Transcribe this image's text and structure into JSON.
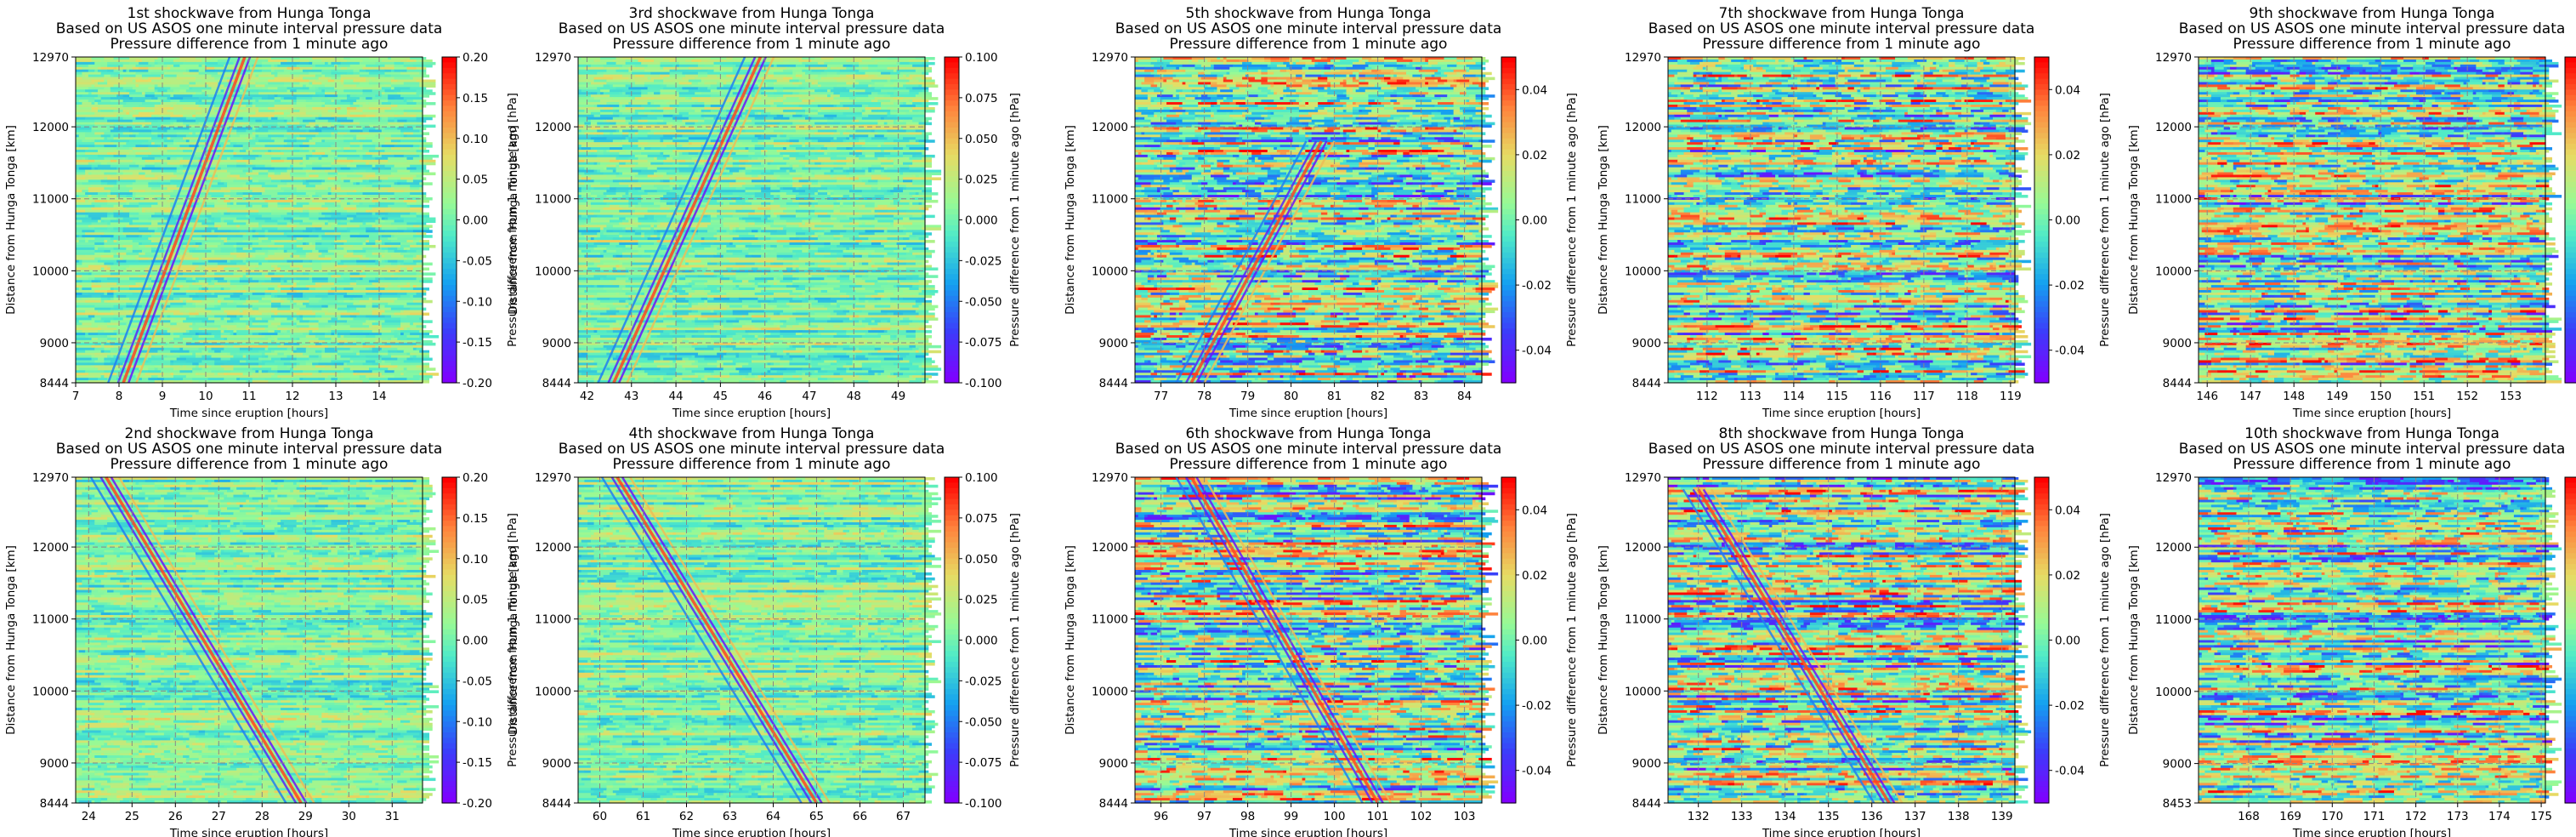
{
  "figure": {
    "title_line2": "Based on US ASOS one minute interval pressure data",
    "title_line3": "Pressure difference from 1 minute ago",
    "xlabel": "Time since eruption [hours]",
    "ylabel": "Distance from Hunga Tonga [km]",
    "colorbar_label": "Pressure difference from 1 minute ago [hPa]",
    "colormap": "rainbow",
    "colors": {
      "background_mid": "#7CF0A8",
      "negative": "#3A3AF8",
      "positive": "#F8352A",
      "grid": "#888888"
    }
  },
  "chart_data": [
    {
      "type": "heatmap",
      "title": "1st shockwave from Hunga Tonga",
      "direction": "away",
      "xlim": [
        7,
        15
      ],
      "xticks": [
        7,
        8,
        9,
        10,
        11,
        12,
        13,
        14
      ],
      "ylim": [
        8444,
        12970
      ],
      "yticks": [
        8444,
        9000,
        10000,
        11000,
        12000,
        12970
      ],
      "colorbar_range": [
        -0.2,
        0.2
      ],
      "colorbar_ticks": [
        "0.20",
        "0.15",
        "0.10",
        "0.05",
        "0.00",
        "-0.05",
        "-0.10",
        "-0.15",
        "-0.20"
      ],
      "wave_center": [
        [
          8.1,
          8444
        ],
        [
          10.9,
          12970
        ]
      ]
    },
    {
      "type": "heatmap",
      "title": "3rd shockwave from Hunga Tonga",
      "direction": "away",
      "xlim": [
        41.8,
        49.6
      ],
      "xticks": [
        42,
        43,
        44,
        45,
        46,
        47,
        48,
        49
      ],
      "ylim": [
        8444,
        12970
      ],
      "yticks": [
        8444,
        9000,
        10000,
        11000,
        12000,
        12970
      ],
      "colorbar_range": [
        -0.1,
        0.1
      ],
      "colorbar_ticks": [
        "0.100",
        "0.075",
        "0.050",
        "0.025",
        "0.000",
        "-0.025",
        "-0.050",
        "-0.075",
        "-0.100"
      ],
      "wave_center": [
        [
          42.6,
          8444
        ],
        [
          45.9,
          12970
        ]
      ]
    },
    {
      "type": "heatmap",
      "title": "5th shockwave from Hunga Tonga",
      "direction": "away",
      "xlim": [
        76.4,
        84.4
      ],
      "xticks": [
        77,
        78,
        79,
        80,
        81,
        82,
        83,
        84
      ],
      "ylim": [
        8444,
        12970
      ],
      "yticks": [
        8444,
        9000,
        10000,
        11000,
        12000,
        12970
      ],
      "colorbar_range": [
        -0.05,
        0.05
      ],
      "colorbar_ticks": [
        "0.04",
        "0.02",
        "0.00",
        "-0.02",
        "-0.04"
      ],
      "wave_center": [
        [
          77.7,
          8444
        ],
        [
          80.7,
          11800
        ]
      ]
    },
    {
      "type": "heatmap",
      "title": "7th shockwave from Hunga Tonga",
      "direction": "none",
      "xlim": [
        111.1,
        119.1
      ],
      "xticks": [
        112,
        113,
        114,
        115,
        116,
        117,
        118,
        119
      ],
      "ylim": [
        8444,
        12970
      ],
      "yticks": [
        8444,
        9000,
        10000,
        11000,
        12000,
        12970
      ],
      "colorbar_range": [
        -0.05,
        0.05
      ],
      "colorbar_ticks": [
        "0.04",
        "0.02",
        "0.00",
        "-0.02",
        "-0.04"
      ],
      "wave_center": []
    },
    {
      "type": "heatmap",
      "title": "9th shockwave from Hunga Tonga",
      "direction": "none",
      "xlim": [
        145.8,
        153.8
      ],
      "xticks": [
        146,
        147,
        148,
        149,
        150,
        151,
        152,
        153
      ],
      "ylim": [
        8444,
        12970
      ],
      "yticks": [
        8444,
        9000,
        10000,
        11000,
        12000,
        12970
      ],
      "colorbar_range": [
        -0.05,
        0.05
      ],
      "colorbar_ticks": [
        "0.04",
        "0.02",
        "0.00",
        "-0.02",
        "-0.04"
      ],
      "wave_center": []
    },
    {
      "type": "heatmap",
      "title": "2nd shockwave from Hunga Tonga",
      "direction": "toward",
      "xlim": [
        23.7,
        31.7
      ],
      "xticks": [
        24,
        25,
        26,
        27,
        28,
        29,
        30,
        31
      ],
      "ylim": [
        8444,
        12970
      ],
      "yticks": [
        8444,
        9000,
        10000,
        11000,
        12000,
        12970
      ],
      "colorbar_range": [
        -0.2,
        0.2
      ],
      "colorbar_ticks": [
        "0.20",
        "0.15",
        "0.10",
        "0.05",
        "0.00",
        "-0.05",
        "-0.10",
        "-0.15",
        "-0.20"
      ],
      "wave_center": [
        [
          24.4,
          12970
        ],
        [
          28.9,
          8444
        ]
      ]
    },
    {
      "type": "heatmap",
      "title": "4th shockwave from Hunga Tonga",
      "direction": "toward",
      "xlim": [
        59.5,
        67.5
      ],
      "xticks": [
        60,
        61,
        62,
        63,
        64,
        65,
        66,
        67
      ],
      "ylim": [
        8444,
        12970
      ],
      "yticks": [
        8444,
        9000,
        10000,
        11000,
        12000,
        12970
      ],
      "colorbar_range": [
        -0.1,
        0.1
      ],
      "colorbar_ticks": [
        "0.100",
        "0.075",
        "0.050",
        "0.025",
        "0.000",
        "-0.025",
        "-0.050",
        "-0.075",
        "-0.100"
      ],
      "wave_center": [
        [
          60.4,
          12970
        ],
        [
          65.0,
          8444
        ]
      ]
    },
    {
      "type": "heatmap",
      "title": "6th shockwave from Hunga Tonga",
      "direction": "toward",
      "xlim": [
        95.4,
        103.4
      ],
      "xticks": [
        96,
        97,
        98,
        99,
        100,
        101,
        102,
        103
      ],
      "ylim": [
        8444,
        12970
      ],
      "yticks": [
        8444,
        9000,
        10000,
        11000,
        12000,
        12970
      ],
      "colorbar_range": [
        -0.05,
        0.05
      ],
      "colorbar_ticks": [
        "0.04",
        "0.02",
        "0.00",
        "-0.02",
        "-0.04"
      ],
      "wave_center": [
        [
          96.7,
          12970
        ],
        [
          101.0,
          8444
        ]
      ]
    },
    {
      "type": "heatmap",
      "title": "8th shockwave from Hunga Tonga",
      "direction": "toward",
      "xlim": [
        131.3,
        139.3
      ],
      "xticks": [
        132,
        133,
        134,
        135,
        136,
        137,
        138,
        139
      ],
      "ylim": [
        8444,
        12970
      ],
      "yticks": [
        8444,
        9000,
        10000,
        11000,
        12000,
        12970
      ],
      "colorbar_range": [
        -0.05,
        0.05
      ],
      "colorbar_ticks": [
        "0.04",
        "0.02",
        "0.00",
        "-0.02",
        "-0.04"
      ],
      "wave_center": [
        [
          132.0,
          12800
        ],
        [
          136.4,
          8444
        ]
      ]
    },
    {
      "type": "heatmap",
      "title": "10th shockwave from Hunga Tonga",
      "direction": "none",
      "xlim": [
        166.8,
        175.1
      ],
      "xticks": [
        168,
        169,
        170,
        171,
        172,
        173,
        174,
        175
      ],
      "ylim": [
        8453,
        12970
      ],
      "yticks": [
        8453,
        9000,
        10000,
        11000,
        12000,
        12970
      ],
      "colorbar_range": [
        -0.05,
        0.05
      ],
      "colorbar_ticks": [
        "0.04",
        "0.02",
        "0.00",
        "-0.02",
        "-0.04"
      ],
      "wave_center": []
    }
  ]
}
